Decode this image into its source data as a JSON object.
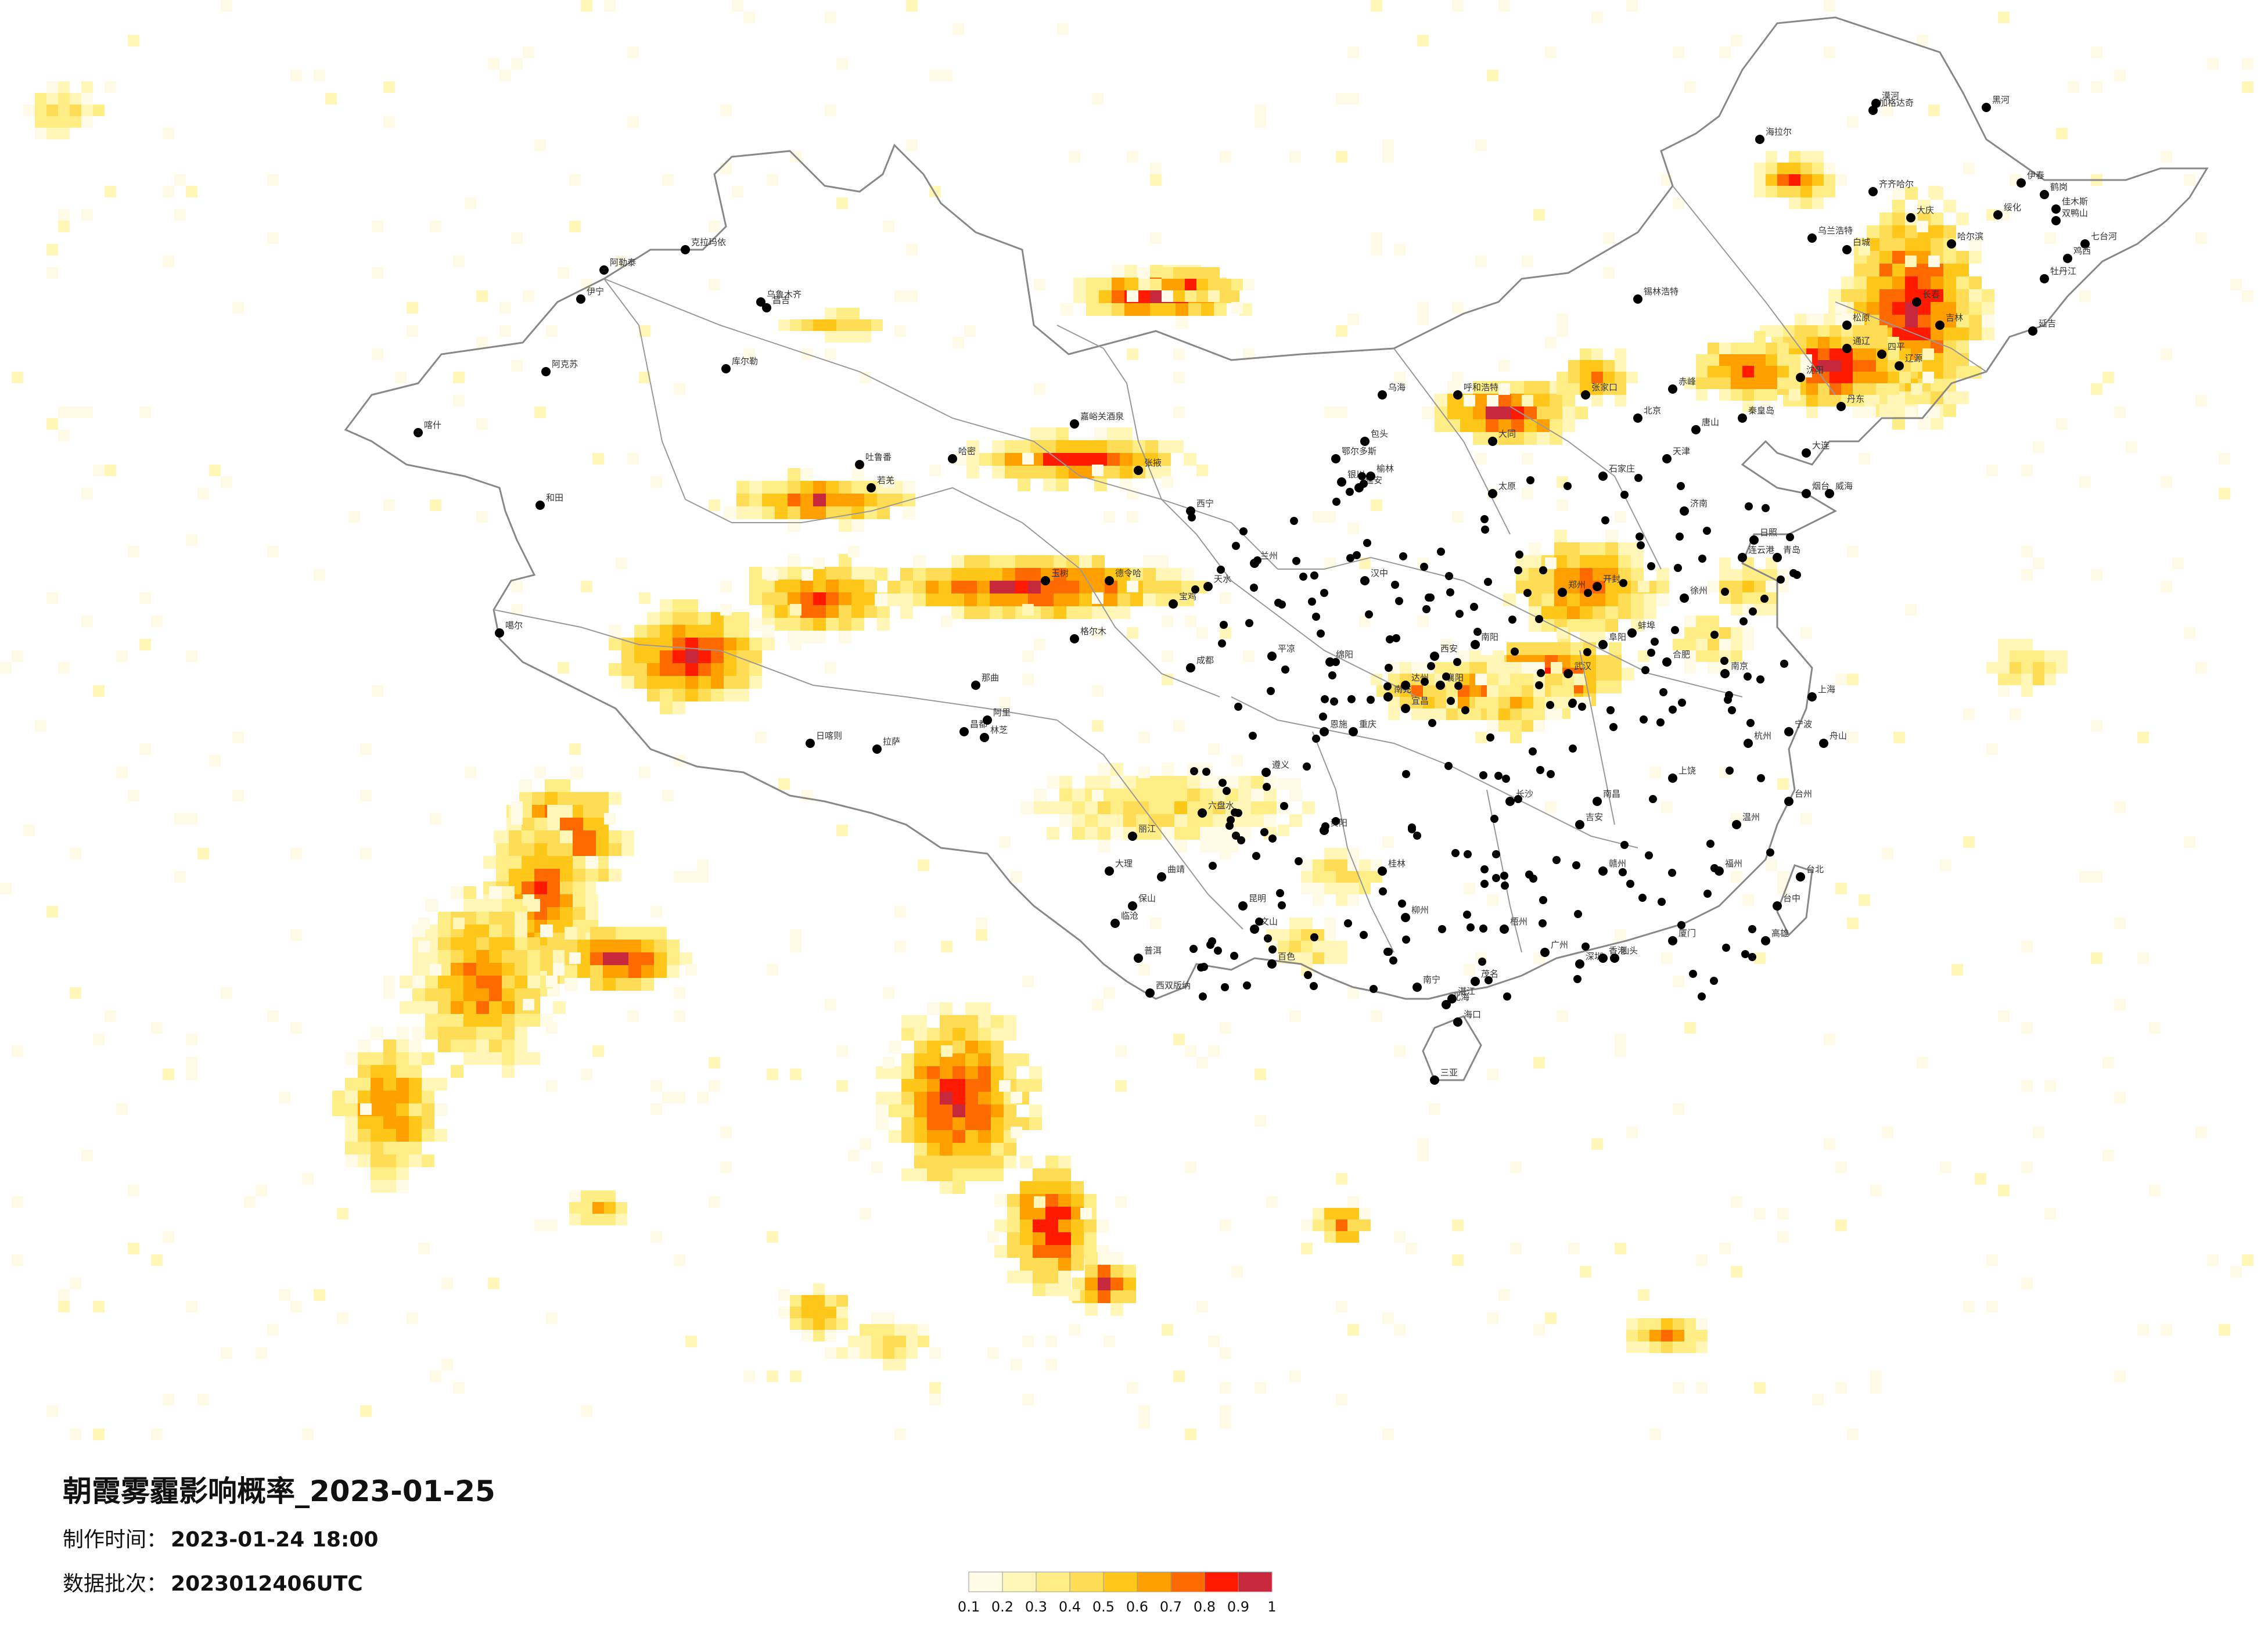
{
  "title": "朝霞雾霾影响概率_2023-01-25",
  "production_time": {
    "label": "制作时间：",
    "value": "2023-01-24 18:00"
  },
  "data_batch": {
    "label": "数据批次：",
    "value": "2023012406UTC"
  },
  "legend": {
    "ticks": [
      "0.1",
      "0.2",
      "0.3",
      "0.4",
      "0.5",
      "0.6",
      "0.7",
      "0.8",
      "0.9",
      "1"
    ],
    "colors": [
      "#fffbe6",
      "#fff6b8",
      "#ffee86",
      "#ffdc55",
      "#ffc71a",
      "#ffa000",
      "#ff6a00",
      "#ff1a00",
      "#c8283c"
    ]
  },
  "cities": [
    {
      "name": "漠河"
    },
    {
      "name": "加格达奇"
    },
    {
      "name": "黑河"
    },
    {
      "name": "海拉尔"
    },
    {
      "name": "伊春"
    },
    {
      "name": "鹤岗"
    },
    {
      "name": "齐齐哈尔"
    },
    {
      "name": "佳木斯"
    },
    {
      "name": "大庆"
    },
    {
      "name": "哈尔滨"
    },
    {
      "name": "绥化"
    },
    {
      "name": "双鸭山"
    },
    {
      "name": "七台河"
    },
    {
      "name": "乌兰浩特"
    },
    {
      "name": "白城"
    },
    {
      "name": "鸡西"
    },
    {
      "name": "牡丹江"
    },
    {
      "name": "松原"
    },
    {
      "name": "长春"
    },
    {
      "name": "吉林"
    },
    {
      "name": "延吉"
    },
    {
      "name": "通辽"
    },
    {
      "name": "四平"
    },
    {
      "name": "辽源"
    },
    {
      "name": "锡林浩特"
    },
    {
      "name": "赤峰"
    },
    {
      "name": "沈阳"
    },
    {
      "name": "丹东"
    },
    {
      "name": "大连"
    },
    {
      "name": "秦皇岛"
    },
    {
      "name": "乌海"
    },
    {
      "name": "呼和浩特"
    },
    {
      "name": "张家口"
    },
    {
      "name": "北京"
    },
    {
      "name": "天津"
    },
    {
      "name": "唐山"
    },
    {
      "name": "石家庄"
    },
    {
      "name": "太原"
    },
    {
      "name": "济南"
    },
    {
      "name": "青岛"
    },
    {
      "name": "烟台"
    },
    {
      "name": "威海"
    },
    {
      "name": "郑州"
    },
    {
      "name": "开封"
    },
    {
      "name": "西安"
    },
    {
      "name": "兰州"
    },
    {
      "name": "银川"
    },
    {
      "name": "西宁"
    },
    {
      "name": "武汉"
    },
    {
      "name": "合肥"
    },
    {
      "name": "南京"
    },
    {
      "name": "上海"
    },
    {
      "name": "杭州"
    },
    {
      "name": "宁波"
    },
    {
      "name": "长沙"
    },
    {
      "name": "南昌"
    },
    {
      "name": "福州"
    },
    {
      "name": "厦门"
    },
    {
      "name": "台北"
    },
    {
      "name": "台中"
    },
    {
      "name": "高雄"
    },
    {
      "name": "广州"
    },
    {
      "name": "深圳"
    },
    {
      "name": "香港"
    },
    {
      "name": "南宁"
    },
    {
      "name": "海口"
    },
    {
      "name": "三亚"
    },
    {
      "name": "昆明"
    },
    {
      "name": "贵阳"
    },
    {
      "name": "成都"
    },
    {
      "name": "重庆"
    },
    {
      "name": "拉萨"
    },
    {
      "name": "日喀则"
    },
    {
      "name": "林芝"
    },
    {
      "name": "昌都"
    },
    {
      "name": "玉树"
    },
    {
      "name": "格尔木"
    },
    {
      "name": "德令哈"
    },
    {
      "name": "嘉峪关酒泉"
    },
    {
      "name": "张掖"
    },
    {
      "name": "哈密"
    },
    {
      "name": "吐鲁番"
    },
    {
      "name": "乌鲁木齐"
    },
    {
      "name": "昌吉"
    },
    {
      "name": "克拉玛依"
    },
    {
      "name": "阿勒泰"
    },
    {
      "name": "伊宁"
    },
    {
      "name": "库尔勒"
    },
    {
      "name": "阿克苏"
    },
    {
      "name": "喀什"
    },
    {
      "name": "和田"
    },
    {
      "name": "若羌"
    },
    {
      "name": "噶尔"
    },
    {
      "name": "阿里"
    },
    {
      "name": "那曲"
    },
    {
      "name": "日照"
    },
    {
      "name": "连云港"
    },
    {
      "name": "徐州"
    },
    {
      "name": "蚌埠"
    },
    {
      "name": "阜阳"
    },
    {
      "name": "南阳"
    },
    {
      "name": "襄阳"
    },
    {
      "name": "宜昌"
    },
    {
      "name": "恩施"
    },
    {
      "name": "遵义"
    },
    {
      "name": "六盘水"
    },
    {
      "name": "曲靖"
    },
    {
      "name": "大理"
    },
    {
      "name": "丽江"
    },
    {
      "name": "保山"
    },
    {
      "name": "临沧"
    },
    {
      "name": "普洱"
    },
    {
      "name": "西双版纳"
    },
    {
      "name": "文山"
    },
    {
      "name": "百色"
    },
    {
      "name": "柳州"
    },
    {
      "name": "桂林"
    },
    {
      "name": "梧州"
    },
    {
      "name": "北海"
    },
    {
      "name": "湛江"
    },
    {
      "name": "茂名"
    },
    {
      "name": "汕头"
    },
    {
      "name": "赣州"
    },
    {
      "name": "吉安"
    },
    {
      "name": "上饶"
    },
    {
      "name": "温州"
    },
    {
      "name": "台州"
    },
    {
      "name": "舟山"
    },
    {
      "name": "绵阳"
    },
    {
      "name": "南充"
    },
    {
      "name": "达州"
    },
    {
      "name": "汉中"
    },
    {
      "name": "宝鸡"
    },
    {
      "name": "天水"
    },
    {
      "name": "平凉"
    },
    {
      "name": "延安"
    },
    {
      "name": "榆林"
    },
    {
      "name": "鄂尔多斯"
    },
    {
      "name": "包头"
    },
    {
      "name": "大同"
    }
  ]
}
